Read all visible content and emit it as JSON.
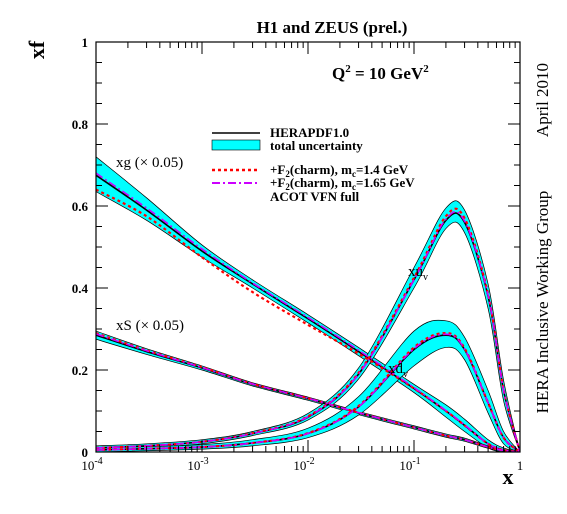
{
  "chart_data": {
    "type": "line",
    "title": "H1 and ZEUS (prel.)",
    "subtitle": "Q",
    "subtitle_sup": "2",
    "subtitle_rest": " = 10 GeV",
    "subtitle_sup2": "2",
    "xlabel": "x",
    "ylabel": "xf",
    "x_scale": "log",
    "xlim": [
      0.0001,
      1
    ],
    "ylim": [
      0,
      1
    ],
    "x_ticks": [
      {
        "base": "10",
        "exp": "-4",
        "value": 0.0001
      },
      {
        "base": "10",
        "exp": "-3",
        "value": 0.001
      },
      {
        "base": "10",
        "exp": "-2",
        "value": 0.01
      },
      {
        "base": "10",
        "exp": "-1",
        "value": 0.1
      },
      {
        "base": "1",
        "exp": "",
        "value": 1
      }
    ],
    "y_ticks": [
      "0",
      "0.2",
      "0.4",
      "0.6",
      "0.8",
      "1"
    ],
    "side_text_date": "April 2010",
    "side_text_group": "HERA Inclusive Working Group",
    "legend": {
      "placement": "upper-center",
      "entries": [
        {
          "label": "HERAPDF1.0",
          "style": "solid",
          "color": "#000000"
        },
        {
          "label": "total uncertainty",
          "style": "band",
          "color": "#00ffff"
        },
        {
          "label_main": "+F",
          "label_sub": "2",
          "label_mid": "(charm), m",
          "label_sub2": "c",
          "label_end": "=1.4 GeV",
          "style": "dashed",
          "color": "#ff0000"
        },
        {
          "label_main": "+F",
          "label_sub": "2",
          "label_mid": "(charm), m",
          "label_sub2": "c",
          "label_end": "=1.65 GeV",
          "style": "dashdot",
          "color": "#cc00ff"
        },
        {
          "label": "ACOT VFN full",
          "style": "none",
          "color": "#000000"
        }
      ]
    },
    "curve_labels": {
      "xg": "xg (× 0.05)",
      "xS": "xS (× 0.05)",
      "xuv_main": "xu",
      "xuv_sub": "v",
      "xdv_main": "xd",
      "xdv_sub": "v"
    },
    "x": [
      0.0001,
      0.0003,
      0.001,
      0.003,
      0.01,
      0.03,
      0.1,
      0.2,
      0.3,
      0.5,
      0.7,
      1.0
    ],
    "series": [
      {
        "name": "xg (× 0.05)",
        "central": [
          0.675,
          0.59,
          0.49,
          0.41,
          0.325,
          0.245,
          0.155,
          0.1,
          0.065,
          0.02,
          0.005,
          0.0
        ],
        "lower": [
          0.635,
          0.565,
          0.475,
          0.4,
          0.315,
          0.235,
          0.145,
          0.085,
          0.05,
          0.01,
          0.0,
          0.0
        ],
        "upper": [
          0.72,
          0.62,
          0.505,
          0.42,
          0.335,
          0.255,
          0.165,
          0.115,
          0.08,
          0.03,
          0.01,
          0.0
        ],
        "red": [
          0.64,
          0.575,
          0.475,
          0.39,
          0.31,
          0.24,
          0.155,
          0.1,
          0.065,
          0.02,
          0.005,
          0.0
        ],
        "violet": [
          0.68,
          0.595,
          0.495,
          0.412,
          0.328,
          0.248,
          0.157,
          0.101,
          0.066,
          0.02,
          0.005,
          0.0
        ]
      },
      {
        "name": "xS (× 0.05)",
        "central": [
          0.285,
          0.245,
          0.205,
          0.165,
          0.13,
          0.095,
          0.06,
          0.04,
          0.03,
          0.012,
          0.004,
          0.0
        ],
        "lower": [
          0.275,
          0.238,
          0.2,
          0.161,
          0.126,
          0.091,
          0.056,
          0.036,
          0.026,
          0.009,
          0.002,
          0.0
        ],
        "upper": [
          0.295,
          0.252,
          0.21,
          0.169,
          0.134,
          0.099,
          0.064,
          0.044,
          0.034,
          0.015,
          0.006,
          0.0
        ],
        "red": [
          0.29,
          0.248,
          0.207,
          0.166,
          0.131,
          0.096,
          0.06,
          0.04,
          0.03,
          0.012,
          0.004,
          0.0
        ],
        "violet": [
          0.288,
          0.247,
          0.206,
          0.166,
          0.131,
          0.096,
          0.06,
          0.04,
          0.03,
          0.012,
          0.004,
          0.0
        ]
      },
      {
        "name": "xu_v",
        "central": [
          0.01,
          0.015,
          0.025,
          0.045,
          0.085,
          0.19,
          0.42,
          0.565,
          0.56,
          0.38,
          0.15,
          0.0
        ],
        "lower": [
          0.005,
          0.01,
          0.02,
          0.04,
          0.078,
          0.178,
          0.4,
          0.545,
          0.535,
          0.35,
          0.125,
          0.0
        ],
        "upper": [
          0.015,
          0.02,
          0.03,
          0.05,
          0.094,
          0.205,
          0.45,
          0.595,
          0.59,
          0.41,
          0.175,
          0.0
        ],
        "red": [
          0.01,
          0.015,
          0.025,
          0.046,
          0.087,
          0.193,
          0.425,
          0.575,
          0.57,
          0.385,
          0.152,
          0.0
        ],
        "violet": [
          0.01,
          0.015,
          0.025,
          0.045,
          0.086,
          0.19,
          0.42,
          0.568,
          0.563,
          0.382,
          0.151,
          0.0
        ]
      },
      {
        "name": "xd_v",
        "central": [
          0.005,
          0.008,
          0.012,
          0.022,
          0.045,
          0.11,
          0.25,
          0.285,
          0.25,
          0.12,
          0.035,
          0.0
        ],
        "lower": [
          0.0,
          0.003,
          0.007,
          0.015,
          0.035,
          0.09,
          0.21,
          0.255,
          0.225,
          0.095,
          0.02,
          0.0
        ],
        "upper": [
          0.01,
          0.013,
          0.018,
          0.03,
          0.058,
          0.135,
          0.295,
          0.32,
          0.28,
          0.15,
          0.05,
          0.0
        ],
        "red": [
          0.005,
          0.008,
          0.012,
          0.022,
          0.046,
          0.112,
          0.255,
          0.29,
          0.253,
          0.12,
          0.035,
          0.0
        ],
        "violet": [
          0.005,
          0.008,
          0.012,
          0.022,
          0.045,
          0.11,
          0.252,
          0.287,
          0.251,
          0.12,
          0.035,
          0.0
        ]
      }
    ],
    "colors": {
      "band": "#00ffff",
      "central": "#000000",
      "red": "#ff0000",
      "violet": "#cc00ff"
    }
  }
}
